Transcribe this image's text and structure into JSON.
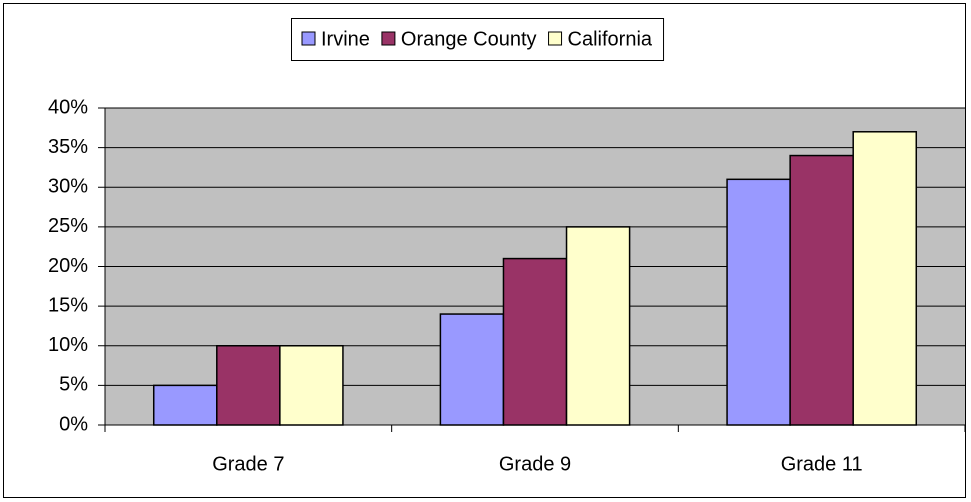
{
  "chart_data": {
    "type": "bar",
    "categories": [
      "Grade 7",
      "Grade 9",
      "Grade 11"
    ],
    "series": [
      {
        "name": "Irvine",
        "color": "#9999ff",
        "values": [
          5,
          14,
          31
        ]
      },
      {
        "name": "Orange County",
        "color": "#993366",
        "values": [
          10,
          21,
          34
        ]
      },
      {
        "name": "California",
        "color": "#ffffcc",
        "values": [
          10,
          25,
          37
        ]
      }
    ],
    "ylim": [
      0,
      40
    ],
    "yticks": [
      {
        "value": 0,
        "label": "0%"
      },
      {
        "value": 5,
        "label": "5%"
      },
      {
        "value": 10,
        "label": "10%"
      },
      {
        "value": 15,
        "label": "15%"
      },
      {
        "value": 20,
        "label": "20%"
      },
      {
        "value": 25,
        "label": "25%"
      },
      {
        "value": 30,
        "label": "30%"
      },
      {
        "value": 35,
        "label": "35%"
      },
      {
        "value": 40,
        "label": "40%"
      }
    ],
    "grid": true,
    "legend": "top"
  }
}
